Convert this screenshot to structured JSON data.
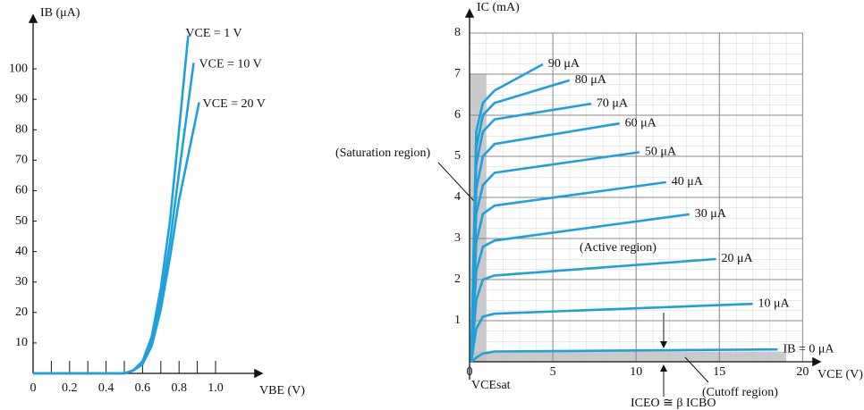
{
  "chart_data": [
    {
      "type": "line",
      "xlabel": "VBE (V)",
      "ylabel": "IB (μA)",
      "xlim": [
        0,
        1.25
      ],
      "ylim": [
        0,
        110
      ],
      "xticks": [
        0,
        0.2,
        0.4,
        0.6,
        0.8,
        {
          "value": 1,
          "label": "1.0"
        }
      ],
      "xminorticks": [
        0.1,
        0.3,
        0.5,
        0.7,
        0.9
      ],
      "yticks": [
        10,
        20,
        30,
        40,
        50,
        60,
        70,
        80,
        90,
        100
      ],
      "grid": false,
      "series": [
        {
          "name": "VCE = 1 V",
          "color": "#1ea0dc",
          "x": [
            0,
            0.5,
            0.55,
            0.6,
            0.65,
            0.7,
            0.75,
            0.8,
            0.85
          ],
          "values": [
            0,
            0,
            1,
            4,
            12,
            28,
            50,
            80,
            111
          ]
        },
        {
          "name": "VCE = 10 V",
          "color": "#1ea0dc",
          "x": [
            0,
            0.5,
            0.55,
            0.6,
            0.65,
            0.7,
            0.75,
            0.8,
            0.88
          ],
          "values": [
            0,
            0,
            1,
            3,
            10,
            24,
            43,
            66,
            102
          ]
        },
        {
          "name": "VCE = 20 V",
          "color": "#1ea0dc",
          "x": [
            0,
            0.5,
            0.55,
            0.6,
            0.65,
            0.7,
            0.75,
            0.8,
            0.91
          ],
          "values": [
            0,
            0,
            1,
            3,
            9,
            21,
            38,
            57,
            89
          ]
        }
      ]
    },
    {
      "type": "line",
      "xlabel": "VCE (V)",
      "ylabel": "IC (mA)",
      "xlim": [
        0,
        21
      ],
      "ylim": [
        0,
        8
      ],
      "xticks": [
        0,
        5,
        10,
        15,
        20
      ],
      "yticks": [
        1,
        2,
        3,
        4,
        5,
        6,
        7,
        8
      ],
      "grid": true,
      "annotations": [
        "(Saturation region)",
        "(Active region)",
        "(Cutoff region)",
        "VCEsat",
        "ICEO ≅ β ICBO"
      ],
      "series": [
        {
          "name": "IB = 0 μA",
          "color": "#1ea0dc",
          "x": [
            0.1,
            0.4,
            0.8,
            1.5,
            18.5
          ],
          "values": [
            0,
            0.1,
            0.2,
            0.25,
            0.3
          ]
        },
        {
          "name": "10 μA",
          "color": "#1ea0dc",
          "x": [
            0.1,
            0.4,
            0.8,
            1.5,
            17
          ],
          "values": [
            0,
            0.8,
            1.1,
            1.17,
            1.41
          ]
        },
        {
          "name": "20 μA",
          "color": "#1ea0dc",
          "x": [
            0.1,
            0.4,
            0.8,
            1.5,
            14.8
          ],
          "values": [
            0,
            1.5,
            2.0,
            2.1,
            2.5
          ]
        },
        {
          "name": "30 μA",
          "color": "#1ea0dc",
          "x": [
            0.1,
            0.4,
            0.8,
            1.5,
            13.2
          ],
          "values": [
            0,
            2.2,
            2.8,
            2.95,
            3.59
          ]
        },
        {
          "name": "40 μA",
          "color": "#1ea0dc",
          "x": [
            0.1,
            0.4,
            0.8,
            1.5,
            11.8
          ],
          "values": [
            0,
            2.9,
            3.6,
            3.8,
            4.37
          ]
        },
        {
          "name": "50 μA",
          "color": "#1ea0dc",
          "x": [
            0.1,
            0.4,
            0.8,
            1.5,
            10.2
          ],
          "values": [
            0,
            3.6,
            4.3,
            4.6,
            5.1
          ]
        },
        {
          "name": "60 μA",
          "color": "#1ea0dc",
          "x": [
            0.1,
            0.4,
            0.8,
            1.5,
            9.0
          ],
          "values": [
            0,
            4.2,
            5.0,
            5.3,
            5.8
          ]
        },
        {
          "name": "70 μA",
          "color": "#1ea0dc",
          "x": [
            0.1,
            0.4,
            0.8,
            1.5,
            7.3
          ],
          "values": [
            0,
            4.8,
            5.6,
            5.9,
            6.28
          ]
        },
        {
          "name": "80 μA",
          "color": "#1ea0dc",
          "x": [
            0.1,
            0.4,
            0.8,
            1.5,
            6.0
          ],
          "values": [
            0,
            5.2,
            6.0,
            6.3,
            6.85
          ]
        },
        {
          "name": "90 μA",
          "color": "#1ea0dc",
          "x": [
            0.1,
            0.4,
            0.8,
            1.5,
            4.4
          ],
          "values": [
            0,
            5.6,
            6.3,
            6.6,
            7.24
          ]
        }
      ]
    }
  ]
}
